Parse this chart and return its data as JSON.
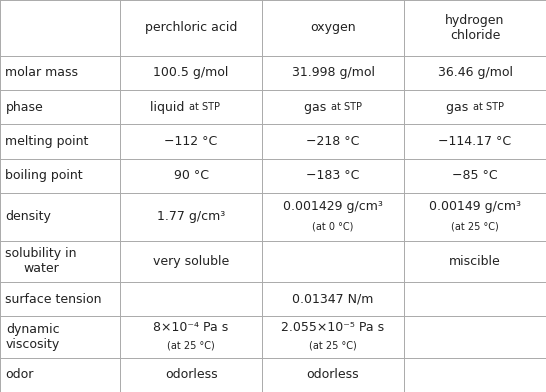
{
  "col_headers": [
    "",
    "perchloric acid",
    "oxygen",
    "hydrogen\nchloride"
  ],
  "rows": [
    {
      "label": "molar mass",
      "cells": [
        {
          "lines": [
            {
              "text": "100.5 g/mol",
              "fs": 9,
              "bold": false
            }
          ]
        },
        {
          "lines": [
            {
              "text": "31.998 g/mol",
              "fs": 9,
              "bold": false
            }
          ]
        },
        {
          "lines": [
            {
              "text": "36.46 g/mol",
              "fs": 9,
              "bold": false
            }
          ]
        }
      ]
    },
    {
      "label": "phase",
      "cells": [
        {
          "phase": true,
          "word": "liquid",
          "suffix": "at STP"
        },
        {
          "phase": true,
          "word": "gas",
          "suffix": "at STP"
        },
        {
          "phase": true,
          "word": "gas",
          "suffix": "at STP"
        }
      ]
    },
    {
      "label": "melting point",
      "cells": [
        {
          "lines": [
            {
              "text": "−112 °C",
              "fs": 9,
              "bold": false
            }
          ]
        },
        {
          "lines": [
            {
              "text": "−218 °C",
              "fs": 9,
              "bold": false
            }
          ]
        },
        {
          "lines": [
            {
              "text": "−114.17 °C",
              "fs": 9,
              "bold": false
            }
          ]
        }
      ]
    },
    {
      "label": "boiling point",
      "cells": [
        {
          "lines": [
            {
              "text": "90 °C",
              "fs": 9,
              "bold": false
            }
          ]
        },
        {
          "lines": [
            {
              "text": "−183 °C",
              "fs": 9,
              "bold": false
            }
          ]
        },
        {
          "lines": [
            {
              "text": "−85 °C",
              "fs": 9,
              "bold": false
            }
          ]
        }
      ]
    },
    {
      "label": "density",
      "cells": [
        {
          "lines": [
            {
              "text": "1.77 g/cm³",
              "fs": 9,
              "bold": false
            }
          ]
        },
        {
          "lines": [
            {
              "text": "0.001429 g/cm³",
              "fs": 9,
              "bold": false
            },
            {
              "text": "(at 0 °C)",
              "fs": 7,
              "bold": false
            }
          ]
        },
        {
          "lines": [
            {
              "text": "0.00149 g/cm³",
              "fs": 9,
              "bold": false
            },
            {
              "text": "(at 25 °C)",
              "fs": 7,
              "bold": false
            }
          ]
        }
      ]
    },
    {
      "label": "solubility in\nwater",
      "cells": [
        {
          "lines": [
            {
              "text": "very soluble",
              "fs": 9,
              "bold": false
            }
          ]
        },
        {
          "lines": []
        },
        {
          "lines": [
            {
              "text": "miscible",
              "fs": 9,
              "bold": false
            }
          ]
        }
      ]
    },
    {
      "label": "surface tension",
      "cells": [
        {
          "lines": []
        },
        {
          "lines": [
            {
              "text": "0.01347 N/m",
              "fs": 9,
              "bold": false
            }
          ]
        },
        {
          "lines": []
        }
      ]
    },
    {
      "label": "dynamic\nviscosity",
      "cells": [
        {
          "lines": [
            {
              "text": "8×10⁻⁴ Pa s",
              "fs": 9,
              "bold": false
            },
            {
              "text": "(at 25 °C)",
              "fs": 7,
              "bold": false
            }
          ]
        },
        {
          "lines": [
            {
              "text": "2.055×10⁻⁵ Pa s",
              "fs": 9,
              "bold": false
            },
            {
              "text": "(at 25 °C)",
              "fs": 7,
              "bold": false
            }
          ]
        },
        {
          "lines": []
        }
      ]
    },
    {
      "label": "odor",
      "cells": [
        {
          "lines": [
            {
              "text": "odorless",
              "fs": 9,
              "bold": false
            }
          ]
        },
        {
          "lines": [
            {
              "text": "odorless",
              "fs": 9,
              "bold": false
            }
          ]
        },
        {
          "lines": []
        }
      ]
    }
  ],
  "bg_color": "#ffffff",
  "line_color": "#aaaaaa",
  "text_color": "#222222",
  "header_fontsize": 9,
  "label_fontsize": 9,
  "fig_width": 5.46,
  "fig_height": 3.92,
  "dpi": 100
}
